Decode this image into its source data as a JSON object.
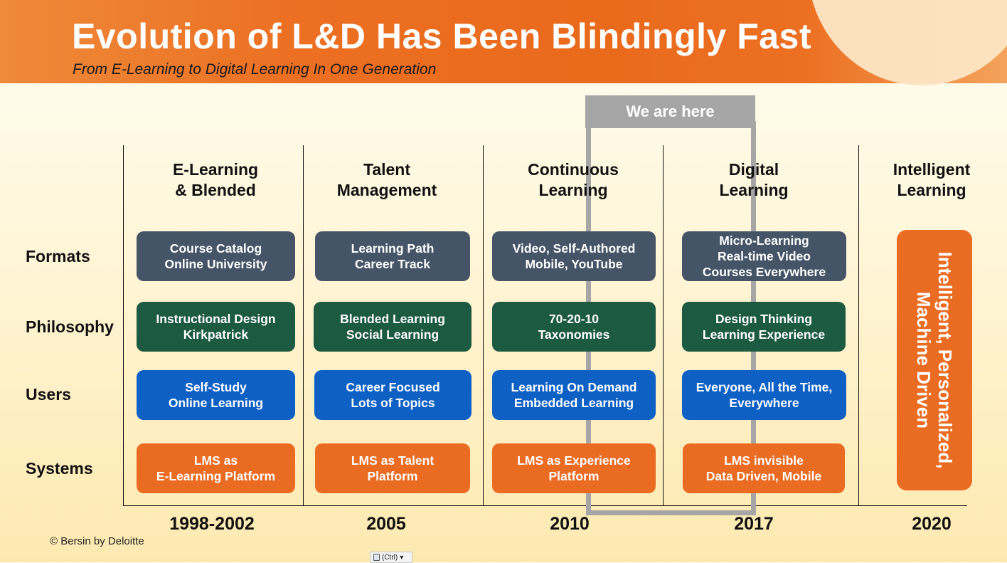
{
  "header": {
    "title": "Evolution of L&D Has Been Blindingly Fast",
    "subtitle": "From E-Learning to Digital Learning In One Generation"
  },
  "marker": {
    "label": "We are here"
  },
  "eras": [
    {
      "title": "E-Learning\n& Blended",
      "year": "1998-2002"
    },
    {
      "title": "Talent\nManagement",
      "year": "2005"
    },
    {
      "title": "Continuous\nLearning",
      "year": "2010"
    },
    {
      "title": "Digital\nLearning",
      "year": "2017"
    },
    {
      "title": "Intelligent\nLearning",
      "year": "2020"
    }
  ],
  "rows": [
    {
      "label": "Formats",
      "cells": [
        "Course Catalog\nOnline University",
        "Learning Path\nCareer Track",
        "Video, Self-Authored\nMobile, YouTube",
        "Micro-Learning\nReal-time Video\nCourses Everywhere"
      ]
    },
    {
      "label": "Philosophy",
      "cells": [
        "Instructional Design\nKirkpatrick",
        "Blended Learning\nSocial Learning",
        "70-20-10\nTaxonomies",
        "Design Thinking\nLearning Experience"
      ]
    },
    {
      "label": "Users",
      "cells": [
        "Self-Study\nOnline Learning",
        "Career Focused\nLots of Topics",
        "Learning On Demand\nEmbedded Learning",
        "Everyone, All the Time,\nEverywhere"
      ]
    },
    {
      "label": "Systems",
      "cells": [
        "LMS as\nE-Learning Platform",
        "LMS as Talent\nPlatform",
        "LMS as Experience\nPlatform",
        "LMS invisible\nData Driven, Mobile"
      ]
    }
  ],
  "future": {
    "text": "Intelligent, Personalized,\nMachine Driven"
  },
  "footer": {
    "copyright": "© Bersin by Deloitte",
    "paste_options": "(Ctrl)"
  },
  "colors": {
    "formats": "#465468",
    "philosophy": "#1c5a42",
    "users": "#0e60c5",
    "systems": "#ea6b22",
    "marker": "#a6a6a6"
  }
}
